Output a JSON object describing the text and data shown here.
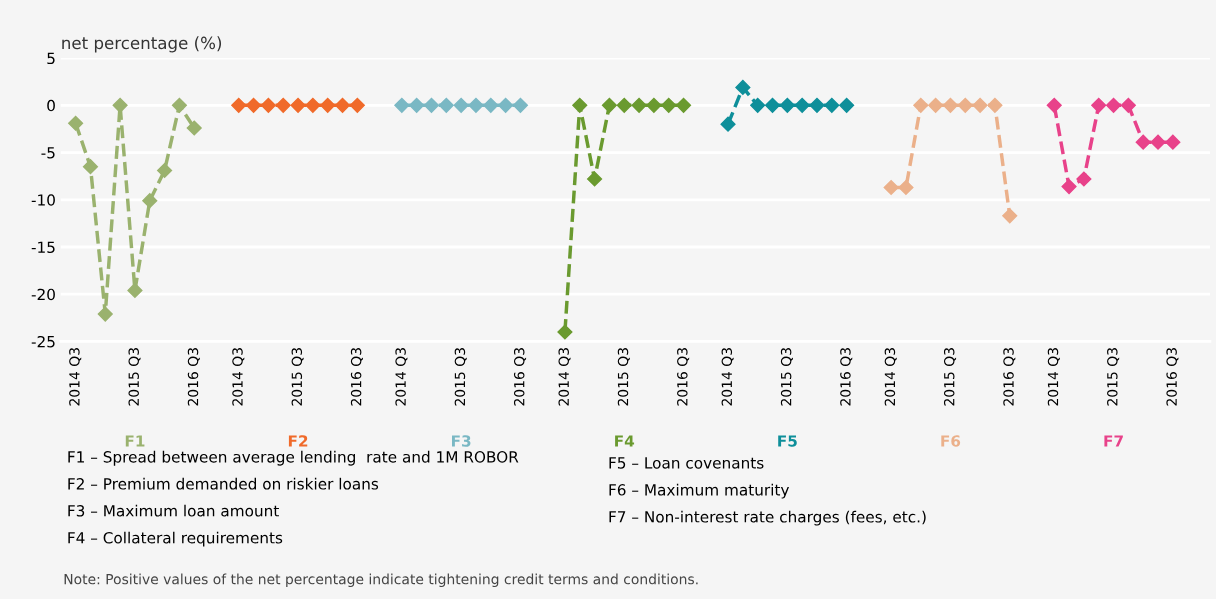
{
  "chart_data": {
    "type": "line",
    "ylabel": "net percentage (%)",
    "categories": [
      "2014 Q3",
      null,
      null,
      null,
      "2015 Q3",
      null,
      null,
      null,
      "2016 Q3",
      null,
      null,
      "2014 Q3",
      null,
      null,
      null,
      "2015 Q3",
      null,
      null,
      null,
      "2016 Q3",
      null,
      null,
      "2014 Q3",
      null,
      null,
      null,
      "2015 Q3",
      null,
      null,
      null,
      "2016 Q3",
      null,
      null,
      "2014 Q3",
      null,
      null,
      null,
      "2015 Q3",
      null,
      null,
      null,
      "2016 Q3",
      null,
      null,
      "2014 Q3",
      null,
      null,
      null,
      "2015 Q3",
      null,
      null,
      null,
      "2016 Q3",
      null,
      null,
      "2014 Q3",
      null,
      null,
      null,
      "2015 Q3",
      null,
      null,
      null,
      "2016 Q3",
      null,
      null,
      "2014 Q3",
      null,
      null,
      null,
      "2015 Q3",
      null,
      null,
      null,
      "2016 Q3",
      null,
      null
    ],
    "series": [
      {
        "name": "F1",
        "color": "#9ab26e",
        "values": [
          -1.9,
          -6.5,
          -22.1,
          0,
          -19.6,
          -10.1,
          -6.9,
          0,
          -2.4,
          null,
          null,
          null,
          null,
          null,
          null,
          null,
          null,
          null,
          null,
          null,
          null,
          null,
          null,
          null,
          null,
          null,
          null,
          null,
          null,
          null,
          null,
          null,
          null,
          null,
          null,
          null,
          null,
          null,
          null,
          null,
          null,
          null,
          null,
          null,
          null,
          null,
          null,
          null,
          null,
          null,
          null,
          null,
          null,
          null,
          null,
          null,
          null,
          null,
          null,
          null,
          null,
          null,
          null,
          null,
          null,
          null,
          null,
          null,
          null,
          null,
          null,
          null,
          null,
          null,
          null,
          null,
          null
        ]
      },
      {
        "name": "F2",
        "color": "#f06a2a",
        "values": [
          null,
          null,
          null,
          null,
          null,
          null,
          null,
          null,
          null,
          null,
          null,
          0,
          0,
          0,
          0,
          0,
          0,
          0,
          0,
          0,
          null,
          null,
          null,
          null,
          null,
          null,
          null,
          null,
          null,
          null,
          null,
          null,
          null,
          null,
          null,
          null,
          null,
          null,
          null,
          null,
          null,
          null,
          null,
          null,
          null,
          null,
          null,
          null,
          null,
          null,
          null,
          null,
          null,
          null,
          null,
          null,
          null,
          null,
          null,
          null,
          null,
          null,
          null,
          null,
          null,
          null,
          null,
          null,
          null,
          null,
          null,
          null,
          null,
          null,
          null,
          null,
          null
        ]
      },
      {
        "name": "F3",
        "color": "#7ab8c4",
        "values": [
          null,
          null,
          null,
          null,
          null,
          null,
          null,
          null,
          null,
          null,
          null,
          null,
          null,
          null,
          null,
          null,
          null,
          null,
          null,
          null,
          null,
          null,
          0,
          0,
          0,
          0,
          0,
          0,
          0,
          0,
          0,
          null,
          null,
          null,
          null,
          null,
          null,
          null,
          null,
          null,
          null,
          null,
          null,
          null,
          null,
          null,
          null,
          null,
          null,
          null,
          null,
          null,
          null,
          null,
          null,
          null,
          null,
          null,
          null,
          null,
          null,
          null,
          null,
          null,
          null,
          null,
          null,
          null,
          null,
          null,
          null,
          null,
          null,
          null,
          null,
          null,
          null
        ]
      },
      {
        "name": "F4",
        "color": "#6a9a2f",
        "values": [
          null,
          null,
          null,
          null,
          null,
          null,
          null,
          null,
          null,
          null,
          null,
          null,
          null,
          null,
          null,
          null,
          null,
          null,
          null,
          null,
          null,
          null,
          null,
          null,
          null,
          null,
          null,
          null,
          null,
          null,
          null,
          null,
          null,
          -24,
          0,
          -7.8,
          0,
          0,
          0,
          0,
          0,
          0,
          null,
          null,
          null,
          null,
          null,
          null,
          null,
          null,
          null,
          null,
          null,
          null,
          null,
          null,
          null,
          null,
          null,
          null,
          null,
          null,
          null,
          null,
          null,
          null,
          null,
          null,
          null,
          null,
          null,
          null,
          null,
          null,
          null,
          null,
          null
        ]
      },
      {
        "name": "F5",
        "color": "#0e8f9a",
        "values": [
          null,
          null,
          null,
          null,
          null,
          null,
          null,
          null,
          null,
          null,
          null,
          null,
          null,
          null,
          null,
          null,
          null,
          null,
          null,
          null,
          null,
          null,
          null,
          null,
          null,
          null,
          null,
          null,
          null,
          null,
          null,
          null,
          null,
          null,
          null,
          null,
          null,
          null,
          null,
          null,
          null,
          null,
          null,
          null,
          -2,
          1.9,
          0,
          0,
          0,
          0,
          0,
          0,
          0,
          null,
          null,
          null,
          null,
          null,
          null,
          null,
          null,
          null,
          null,
          null,
          null,
          null,
          null,
          null,
          null,
          null,
          null,
          null,
          null,
          null,
          null,
          null,
          null
        ]
      },
      {
        "name": "F6",
        "color": "#ebb08a",
        "values": [
          null,
          null,
          null,
          null,
          null,
          null,
          null,
          null,
          null,
          null,
          null,
          null,
          null,
          null,
          null,
          null,
          null,
          null,
          null,
          null,
          null,
          null,
          null,
          null,
          null,
          null,
          null,
          null,
          null,
          null,
          null,
          null,
          null,
          null,
          null,
          null,
          null,
          null,
          null,
          null,
          null,
          null,
          null,
          null,
          null,
          null,
          null,
          null,
          null,
          null,
          null,
          null,
          null,
          null,
          null,
          -8.7,
          -8.7,
          0,
          0,
          0,
          0,
          0,
          0,
          -11.7,
          null,
          null,
          null,
          null,
          null,
          null,
          null,
          null,
          null,
          null,
          null,
          null,
          null
        ]
      },
      {
        "name": "F7",
        "color": "#e8428a",
        "values": [
          null,
          null,
          null,
          null,
          null,
          null,
          null,
          null,
          null,
          null,
          null,
          null,
          null,
          null,
          null,
          null,
          null,
          null,
          null,
          null,
          null,
          null,
          null,
          null,
          null,
          null,
          null,
          null,
          null,
          null,
          null,
          null,
          null,
          null,
          null,
          null,
          null,
          null,
          null,
          null,
          null,
          null,
          null,
          null,
          null,
          null,
          null,
          null,
          null,
          null,
          null,
          null,
          null,
          null,
          null,
          null,
          null,
          null,
          null,
          null,
          null,
          null,
          null,
          null,
          null,
          null,
          0,
          -8.6,
          -7.8,
          0,
          0,
          0,
          -3.9,
          -3.9,
          -3.9,
          null,
          null
        ]
      }
    ],
    "ylim": [
      -25,
      5
    ],
    "yticks": [
      -25,
      -20,
      -15,
      -10,
      -5,
      0,
      5
    ],
    "grid": "y",
    "marker": "diamond",
    "line_style": "dashed",
    "annotations": [
      "F1 – Spread between average lending  rate and 1M ROBOR",
      "F2 – Premium demanded on riskier loans",
      "F3 – Maximum loan amount",
      "F4 – Collateral requirements",
      "F5 – Loan covenants",
      "F6 – Maximum maturity",
      "F7 – Non-interest rate charges (fees, etc.)",
      "Note: Positive values of the net percentage indicate tightening credit terms and conditions."
    ]
  }
}
